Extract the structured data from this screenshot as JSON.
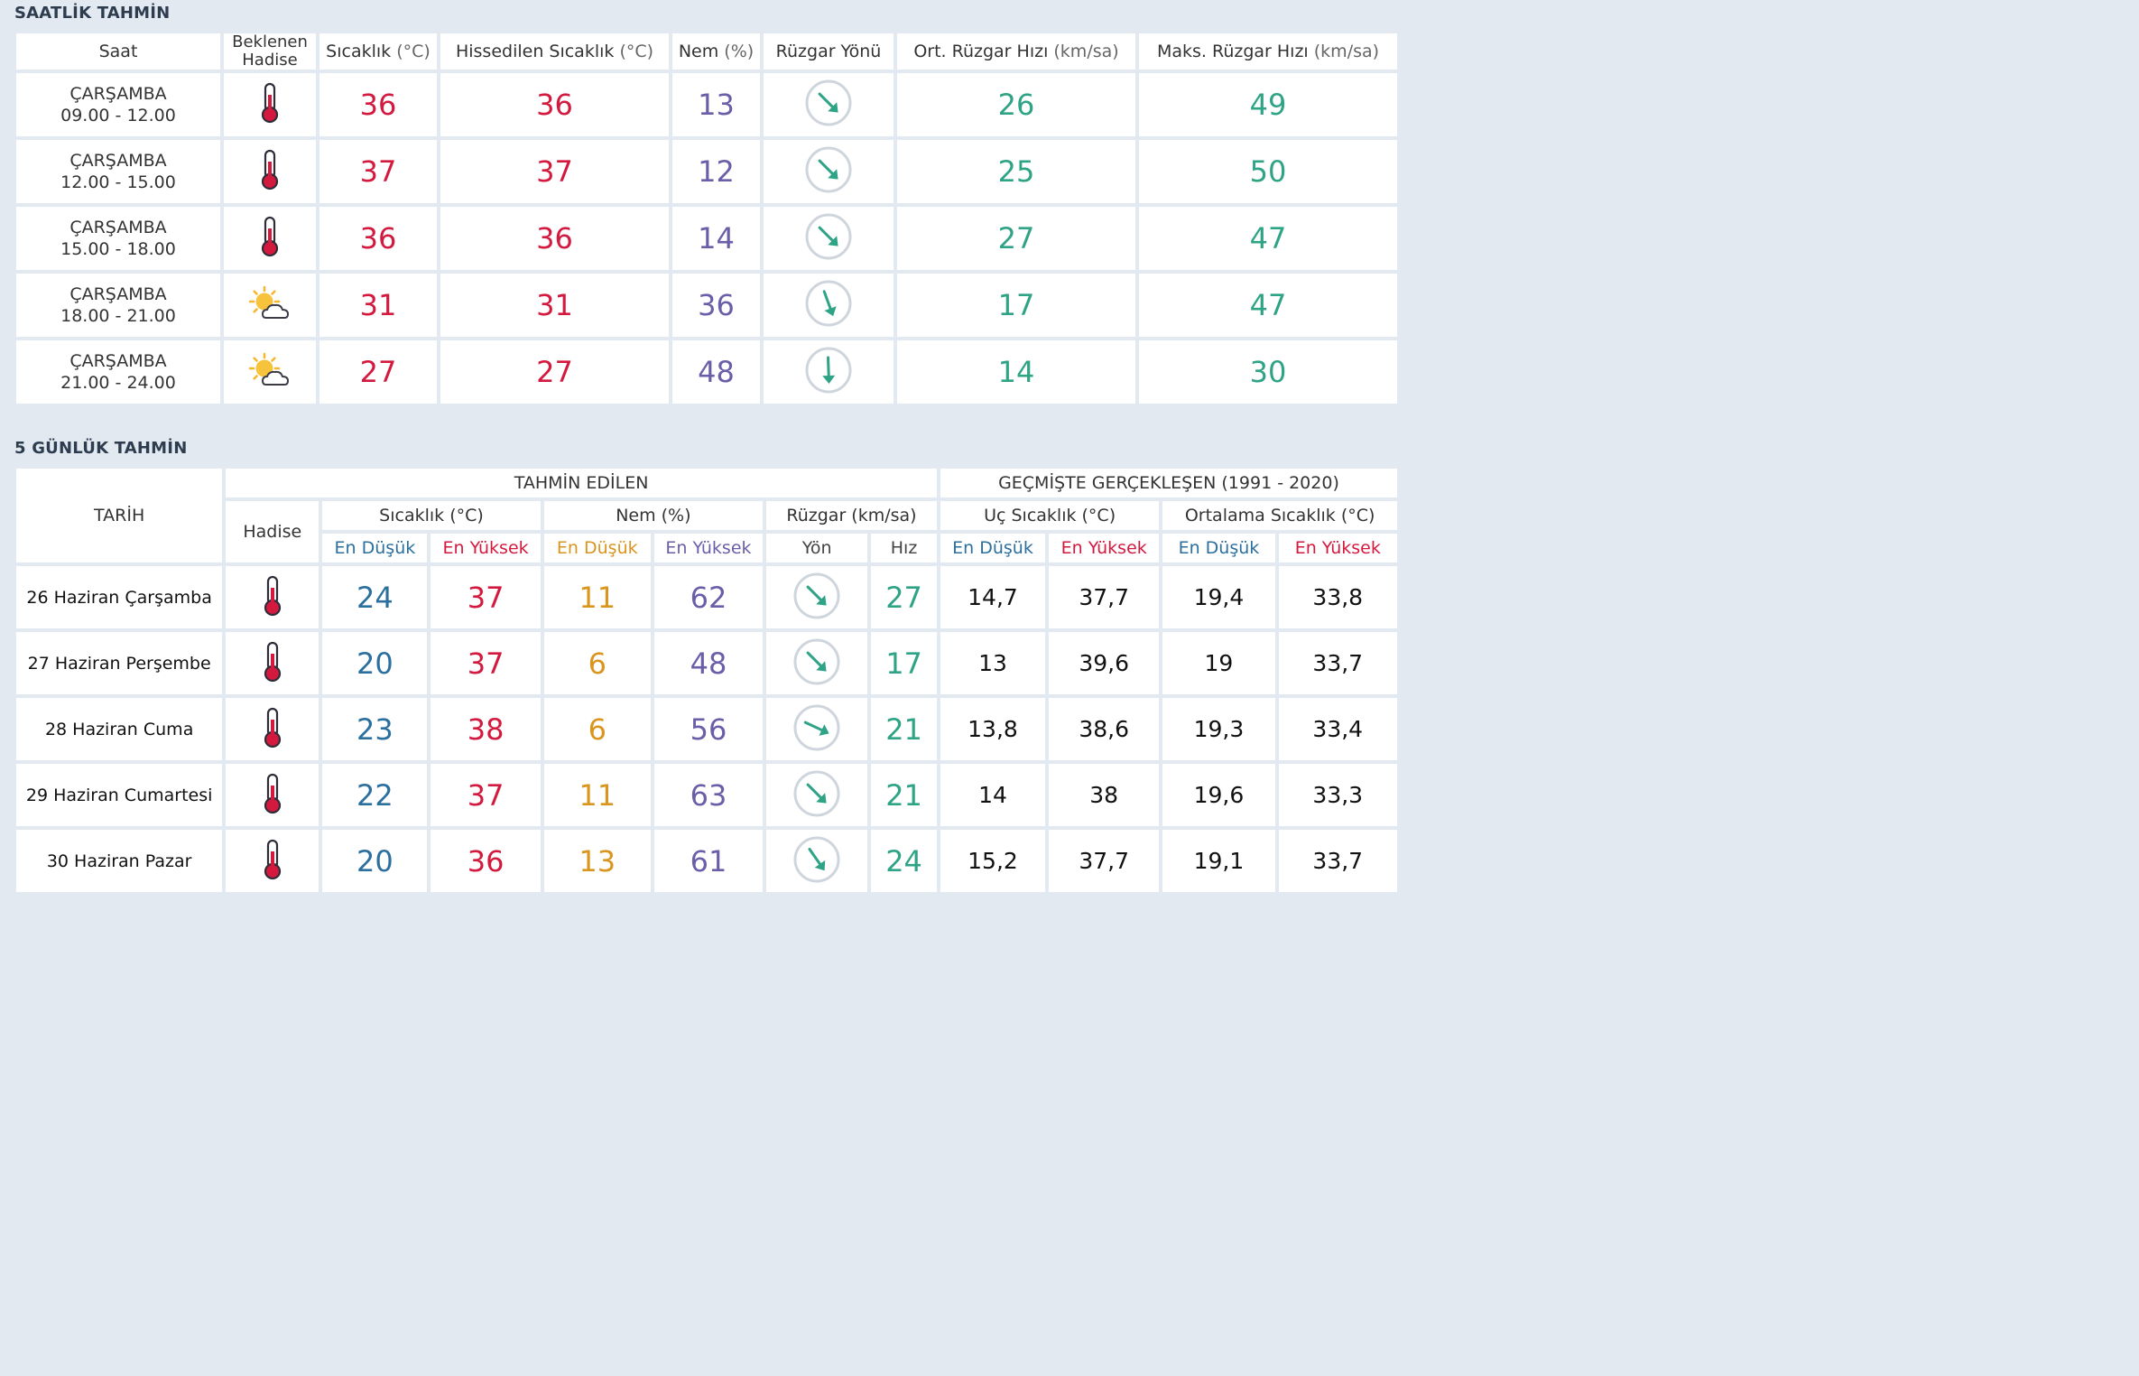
{
  "hourly": {
    "title": "SAATLİK TAHMİN",
    "headers": {
      "saat": "Saat",
      "hadise_1": "Beklenen",
      "hadise_2": "Hadise",
      "sicaklik": "Sıcaklık",
      "sicaklik_unit": "(°C)",
      "hissedilen": "Hissedilen Sıcaklık",
      "hissedilen_unit": "(°C)",
      "nem": "Nem",
      "nem_unit": "(%)",
      "yon": "Rüzgar Yönü",
      "ort": "Ort. Rüzgar Hızı",
      "ort_unit": "(km/sa)",
      "maks": "Maks. Rüzgar Hızı",
      "maks_unit": "(km/sa)"
    },
    "rows": [
      {
        "day": "ÇARŞAMBA",
        "time": "09.00 - 12.00",
        "icon": "thermometer-icon",
        "temp": "36",
        "feels": "36",
        "hum": "13",
        "wind_deg": 135,
        "avg": "26",
        "max": "49"
      },
      {
        "day": "ÇARŞAMBA",
        "time": "12.00 - 15.00",
        "icon": "thermometer-icon",
        "temp": "37",
        "feels": "37",
        "hum": "12",
        "wind_deg": 135,
        "avg": "25",
        "max": "50"
      },
      {
        "day": "ÇARŞAMBA",
        "time": "15.00 - 18.00",
        "icon": "thermometer-icon",
        "temp": "36",
        "feels": "36",
        "hum": "14",
        "wind_deg": 135,
        "avg": "27",
        "max": "47"
      },
      {
        "day": "ÇARŞAMBA",
        "time": "18.00 - 21.00",
        "icon": "partly-cloudy-icon",
        "temp": "31",
        "feels": "31",
        "hum": "36",
        "wind_deg": 160,
        "avg": "17",
        "max": "47"
      },
      {
        "day": "ÇARŞAMBA",
        "time": "21.00 - 24.00",
        "icon": "partly-cloudy-icon",
        "temp": "27",
        "feels": "27",
        "hum": "48",
        "wind_deg": 178,
        "avg": "14",
        "max": "30"
      }
    ]
  },
  "daily": {
    "title": "5 GÜNLÜK TAHMİN",
    "headers": {
      "tarih": "TARİH",
      "tahmin": "TAHMİN EDİLEN",
      "gecmis": "GEÇMİŞTE GERÇEKLEŞEN (1991 - 2020)",
      "hadise": "Hadise",
      "sicaklik": "Sıcaklık (°C)",
      "nem": "Nem (%)",
      "ruzgar": "Rüzgar (km/sa)",
      "uc": "Uç Sıcaklık (°C)",
      "ortalama": "Ortalama Sıcaklık (°C)",
      "en_dusuk": "En Düşük",
      "en_yuksek": "En Yüksek",
      "yon": "Yön",
      "hiz": "Hız"
    },
    "rows": [
      {
        "date": "26 Haziran Çarşamba",
        "icon": "thermometer-icon",
        "tmin": "24",
        "tmax": "37",
        "hmin": "11",
        "hmax": "62",
        "wind_deg": 135,
        "speed": "27",
        "uc_min": "14,7",
        "uc_max": "37,7",
        "ort_min": "19,4",
        "ort_max": "33,8"
      },
      {
        "date": "27 Haziran Perşembe",
        "icon": "thermometer-icon",
        "tmin": "20",
        "tmax": "37",
        "hmin": "6",
        "hmax": "48",
        "wind_deg": 135,
        "speed": "17",
        "uc_min": "13",
        "uc_max": "39,6",
        "ort_min": "19",
        "ort_max": "33,7"
      },
      {
        "date": "28 Haziran Cuma",
        "icon": "thermometer-icon",
        "tmin": "23",
        "tmax": "38",
        "hmin": "6",
        "hmax": "56",
        "wind_deg": 115,
        "speed": "21",
        "uc_min": "13,8",
        "uc_max": "38,6",
        "ort_min": "19,3",
        "ort_max": "33,4"
      },
      {
        "date": "29 Haziran Cumartesi",
        "icon": "thermometer-icon",
        "tmin": "22",
        "tmax": "37",
        "hmin": "11",
        "hmax": "63",
        "wind_deg": 135,
        "speed": "21",
        "uc_min": "14",
        "uc_max": "38",
        "ort_min": "19,6",
        "ort_max": "33,3"
      },
      {
        "date": "30 Haziran Pazar",
        "icon": "thermometer-icon",
        "tmin": "20",
        "tmax": "36",
        "hmin": "13",
        "hmax": "61",
        "wind_deg": 145,
        "speed": "24",
        "uc_min": "15,2",
        "uc_max": "37,7",
        "ort_min": "19,1",
        "ort_max": "33,7"
      }
    ]
  },
  "colors": {
    "temp": "#d4193f",
    "humidity": "#6a5ea8",
    "wind": "#2ea385",
    "min_temp": "#2b6f9f",
    "min_humidity": "#d9951d",
    "background": "#e2e9f0"
  }
}
